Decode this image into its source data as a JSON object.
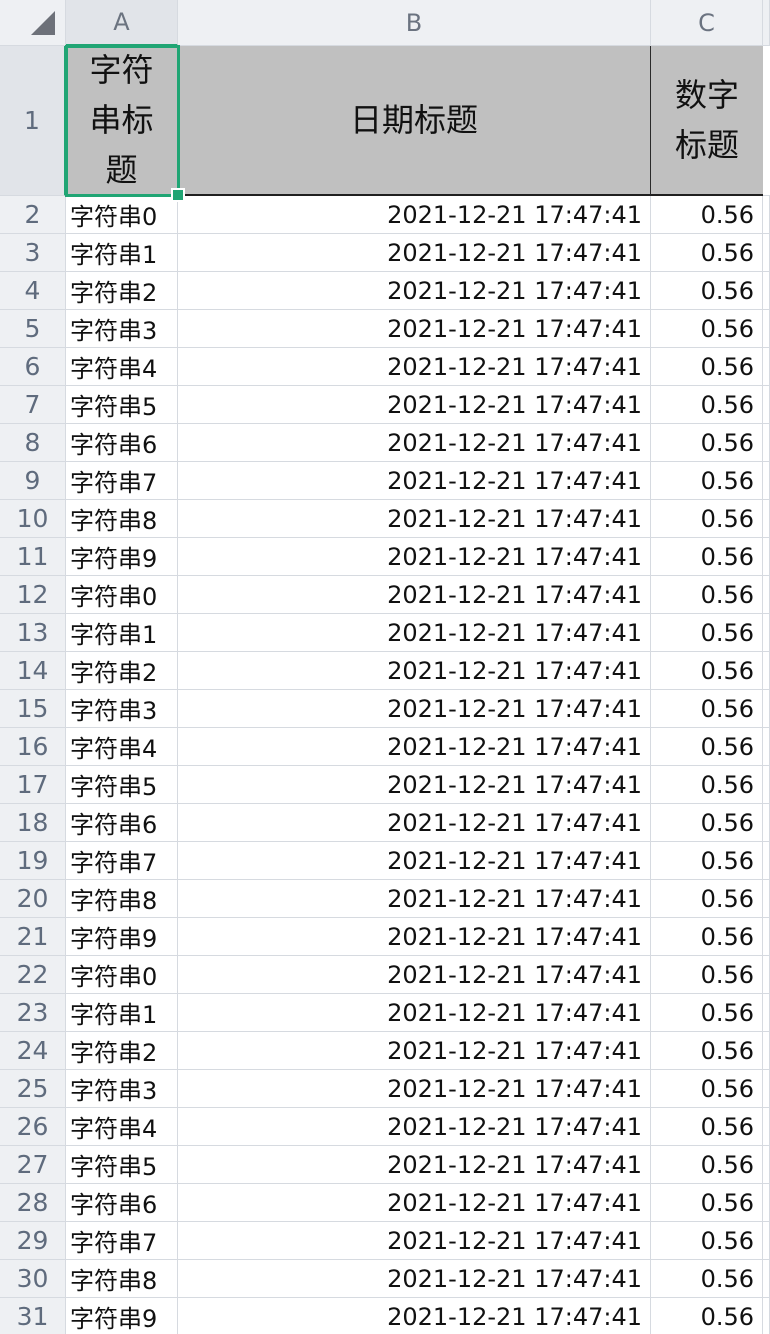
{
  "columns": [
    "A",
    "B",
    "C"
  ],
  "header": {
    "row_number": "1",
    "a": "字符串标题",
    "b": "日期标题",
    "c": "数字标题"
  },
  "rows": [
    {
      "num": "2",
      "a": "字符串0",
      "b": "2021-12-21 17:47:41",
      "c": "0.56"
    },
    {
      "num": "3",
      "a": "字符串1",
      "b": "2021-12-21 17:47:41",
      "c": "0.56"
    },
    {
      "num": "4",
      "a": "字符串2",
      "b": "2021-12-21 17:47:41",
      "c": "0.56"
    },
    {
      "num": "5",
      "a": "字符串3",
      "b": "2021-12-21 17:47:41",
      "c": "0.56"
    },
    {
      "num": "6",
      "a": "字符串4",
      "b": "2021-12-21 17:47:41",
      "c": "0.56"
    },
    {
      "num": "7",
      "a": "字符串5",
      "b": "2021-12-21 17:47:41",
      "c": "0.56"
    },
    {
      "num": "8",
      "a": "字符串6",
      "b": "2021-12-21 17:47:41",
      "c": "0.56"
    },
    {
      "num": "9",
      "a": "字符串7",
      "b": "2021-12-21 17:47:41",
      "c": "0.56"
    },
    {
      "num": "10",
      "a": "字符串8",
      "b": "2021-12-21 17:47:41",
      "c": "0.56"
    },
    {
      "num": "11",
      "a": "字符串9",
      "b": "2021-12-21 17:47:41",
      "c": "0.56"
    },
    {
      "num": "12",
      "a": "字符串0",
      "b": "2021-12-21 17:47:41",
      "c": "0.56"
    },
    {
      "num": "13",
      "a": "字符串1",
      "b": "2021-12-21 17:47:41",
      "c": "0.56"
    },
    {
      "num": "14",
      "a": "字符串2",
      "b": "2021-12-21 17:47:41",
      "c": "0.56"
    },
    {
      "num": "15",
      "a": "字符串3",
      "b": "2021-12-21 17:47:41",
      "c": "0.56"
    },
    {
      "num": "16",
      "a": "字符串4",
      "b": "2021-12-21 17:47:41",
      "c": "0.56"
    },
    {
      "num": "17",
      "a": "字符串5",
      "b": "2021-12-21 17:47:41",
      "c": "0.56"
    },
    {
      "num": "18",
      "a": "字符串6",
      "b": "2021-12-21 17:47:41",
      "c": "0.56"
    },
    {
      "num": "19",
      "a": "字符串7",
      "b": "2021-12-21 17:47:41",
      "c": "0.56"
    },
    {
      "num": "20",
      "a": "字符串8",
      "b": "2021-12-21 17:47:41",
      "c": "0.56"
    },
    {
      "num": "21",
      "a": "字符串9",
      "b": "2021-12-21 17:47:41",
      "c": "0.56"
    },
    {
      "num": "22",
      "a": "字符串0",
      "b": "2021-12-21 17:47:41",
      "c": "0.56"
    },
    {
      "num": "23",
      "a": "字符串1",
      "b": "2021-12-21 17:47:41",
      "c": "0.56"
    },
    {
      "num": "24",
      "a": "字符串2",
      "b": "2021-12-21 17:47:41",
      "c": "0.56"
    },
    {
      "num": "25",
      "a": "字符串3",
      "b": "2021-12-21 17:47:41",
      "c": "0.56"
    },
    {
      "num": "26",
      "a": "字符串4",
      "b": "2021-12-21 17:47:41",
      "c": "0.56"
    },
    {
      "num": "27",
      "a": "字符串5",
      "b": "2021-12-21 17:47:41",
      "c": "0.56"
    },
    {
      "num": "28",
      "a": "字符串6",
      "b": "2021-12-21 17:47:41",
      "c": "0.56"
    },
    {
      "num": "29",
      "a": "字符串7",
      "b": "2021-12-21 17:47:41",
      "c": "0.56"
    },
    {
      "num": "30",
      "a": "字符串8",
      "b": "2021-12-21 17:47:41",
      "c": "0.56"
    },
    {
      "num": "31",
      "a": "字符串9",
      "b": "2021-12-21 17:47:41",
      "c": "0.56"
    }
  ],
  "selected_cell": "A1",
  "colors": {
    "selection": "#20a574",
    "header_fill": "#c0c0c0",
    "gridline": "#d6dae0",
    "heading_bg": "#eef0f3"
  }
}
